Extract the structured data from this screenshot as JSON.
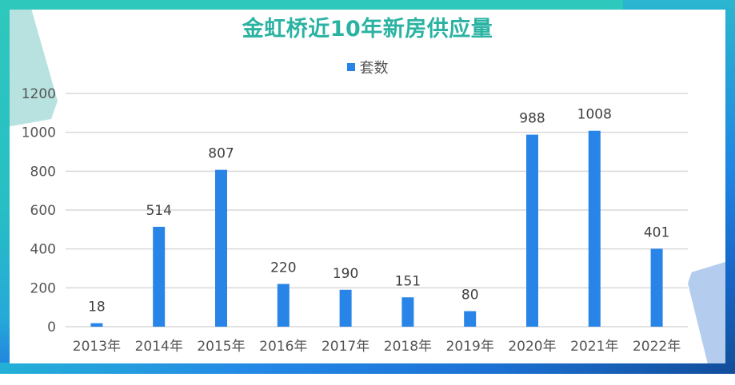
{
  "chart_data": {
    "type": "bar",
    "title": "金虹桥近10年新房供应量",
    "xlabel": "",
    "ylabel": "",
    "categories": [
      "2013年",
      "2014年",
      "2015年",
      "2016年",
      "2017年",
      "2018年",
      "2019年",
      "2020年",
      "2021年",
      "2022年"
    ],
    "series": [
      {
        "name": "套数",
        "color": "#2884e6",
        "values": [
          18,
          514,
          807,
          220,
          190,
          151,
          80,
          988,
          1008,
          401
        ]
      }
    ],
    "ylim": [
      0,
      1200
    ],
    "yticks": [
      0,
      200,
      400,
      600,
      800,
      1000,
      1200
    ],
    "grid": true,
    "legend_position": "top",
    "data_labels": true
  },
  "header": {
    "title": "金虹桥近10年新房供应量",
    "legend_label": "套数"
  },
  "colors": {
    "bar": "#2884e6",
    "title": "#2ab3a2",
    "grid": "#d9d9d9"
  }
}
